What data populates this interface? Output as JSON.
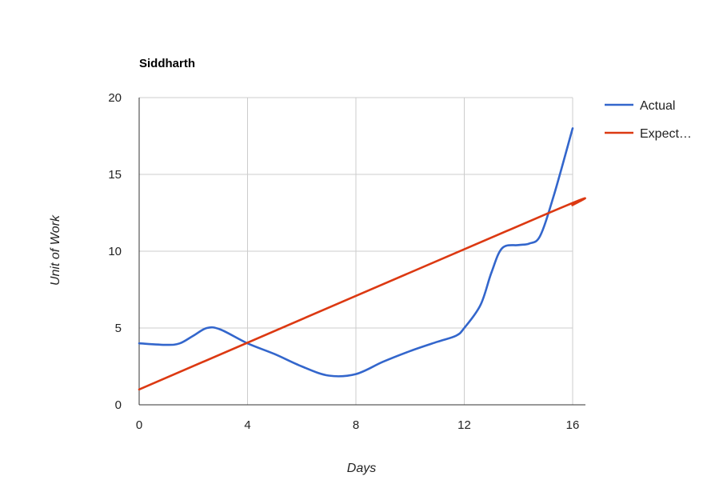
{
  "chart_data": {
    "type": "line",
    "title": "Siddharth",
    "xlabel": "Days",
    "ylabel": "Unit of Work",
    "xlim": [
      0,
      16
    ],
    "ylim": [
      0,
      20
    ],
    "x_ticks": [
      0,
      4,
      8,
      12,
      16
    ],
    "y_ticks": [
      0,
      5,
      10,
      15,
      20
    ],
    "grid": true,
    "legend_position": "right",
    "series": [
      {
        "name": "Actual",
        "color": "#3366cc",
        "x": [
          0,
          1,
          1.5,
          2,
          2.5,
          3,
          4,
          5,
          6,
          7,
          8,
          9,
          10,
          11,
          11.7,
          12,
          12.6,
          13,
          13.4,
          14,
          14.4,
          14.8,
          15.3,
          16
        ],
        "y": [
          4,
          3.9,
          4,
          4.5,
          5,
          4.9,
          4,
          3.3,
          2.5,
          1.9,
          2,
          2.8,
          3.5,
          4.1,
          4.5,
          5,
          6.5,
          8.6,
          10.2,
          10.4,
          10.5,
          11,
          13.6,
          18
        ]
      },
      {
        "name": "Expect…",
        "color": "#dc3912",
        "x": [
          0,
          15,
          16
        ],
        "y": [
          1,
          12.4,
          13
        ]
      }
    ]
  }
}
